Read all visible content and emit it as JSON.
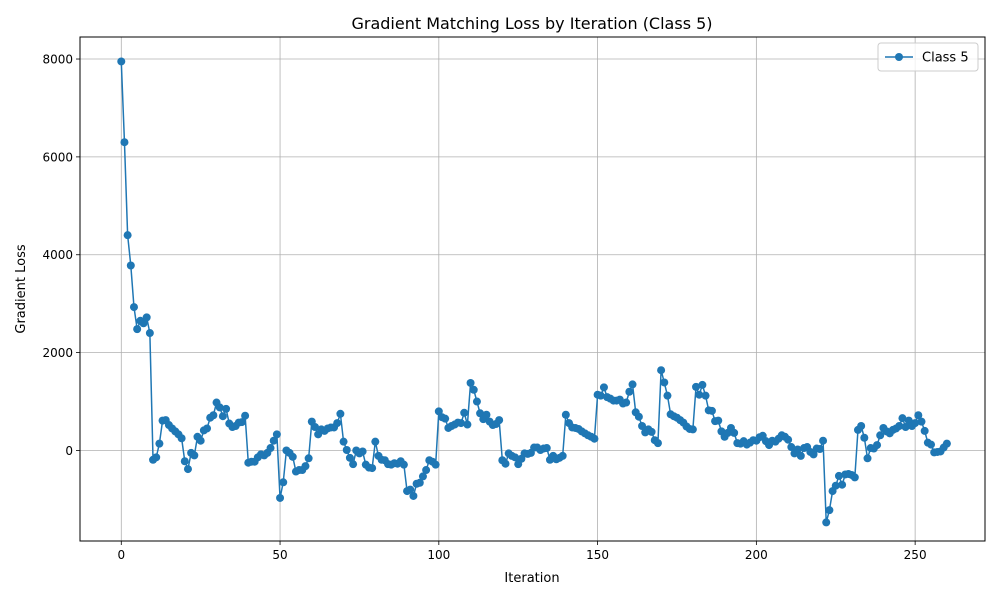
{
  "chart_data": {
    "type": "line",
    "title": "Gradient Matching Loss by Iteration (Class 5)",
    "xlabel": "Iteration",
    "ylabel": "Gradient Loss",
    "xlim": [
      -13,
      272
    ],
    "ylim": [
      -1850,
      8450
    ],
    "xticks": [
      0,
      50,
      100,
      150,
      200,
      250
    ],
    "yticks": [
      0,
      2000,
      4000,
      6000,
      8000
    ],
    "grid": true,
    "legend_position": "top-right",
    "series": [
      {
        "name": "Class 5",
        "color": "#1f77b4",
        "marker": "circle",
        "x_start": 0,
        "x_step": 1,
        "values": [
          7950,
          6300,
          4400,
          3780,
          2930,
          2480,
          2650,
          2600,
          2720,
          2400,
          -190,
          -140,
          140,
          610,
          620,
          520,
          450,
          390,
          330,
          250,
          -220,
          -380,
          -50,
          -100,
          280,
          200,
          410,
          450,
          670,
          720,
          980,
          880,
          700,
          850,
          550,
          480,
          500,
          570,
          580,
          710,
          -250,
          -230,
          -230,
          -140,
          -80,
          -100,
          -50,
          50,
          200,
          330,
          -970,
          -650,
          0,
          -50,
          -130,
          -430,
          -400,
          -400,
          -320,
          -160,
          590,
          480,
          330,
          430,
          400,
          450,
          470,
          470,
          560,
          750,
          180,
          10,
          -150,
          -280,
          0,
          -60,
          -20,
          -290,
          -350,
          -360,
          180,
          -110,
          -190,
          -200,
          -280,
          -290,
          -260,
          -270,
          -220,
          -290,
          -830,
          -800,
          -930,
          -680,
          -660,
          -530,
          -400,
          -200,
          -230,
          -290,
          800,
          680,
          650,
          460,
          500,
          530,
          570,
          560,
          770,
          530,
          1380,
          1240,
          1000,
          760,
          640,
          730,
          590,
          520,
          540,
          620,
          -200,
          -270,
          -60,
          -110,
          -140,
          -280,
          -170,
          -60,
          -70,
          -50,
          60,
          60,
          10,
          40,
          50,
          -190,
          -110,
          -180,
          -150,
          -110,
          730,
          560,
          470,
          460,
          440,
          390,
          350,
          310,
          280,
          240,
          1140,
          1120,
          1290,
          1090,
          1060,
          1020,
          1020,
          1040,
          960,
          980,
          1200,
          1350,
          780,
          690,
          500,
          370,
          430,
          380,
          210,
          150,
          1640,
          1390,
          1120,
          740,
          700,
          670,
          620,
          570,
          490,
          440,
          430,
          1300,
          1140,
          1340,
          1120,
          820,
          810,
          600,
          610,
          390,
          280,
          360,
          460,
          360,
          150,
          140,
          190,
          120,
          160,
          210,
          200,
          270,
          300,
          190,
          110,
          200,
          180,
          240,
          310,
          280,
          220,
          70,
          -60,
          20,
          -110,
          50,
          70,
          -30,
          -80,
          40,
          30,
          200,
          -1470,
          -1220,
          -830,
          -720,
          -520,
          -700,
          -490,
          -480,
          -500,
          -550,
          420,
          500,
          260,
          -160,
          50,
          40,
          110,
          310,
          460,
          390,
          350,
          420,
          450,
          500,
          660,
          480,
          610,
          500,
          560,
          720,
          590,
          400,
          160,
          120,
          -40,
          -30,
          -20,
          60,
          140
        ]
      }
    ]
  }
}
